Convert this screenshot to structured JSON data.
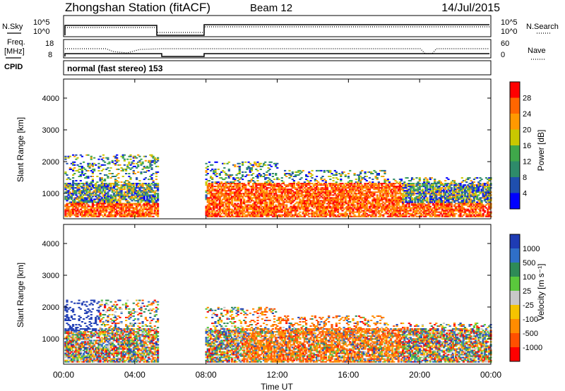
{
  "header": {
    "title": "Zhongshan Station (fitACF)",
    "beam": "Beam 12",
    "date": "14/Jul/2015"
  },
  "top_panel": {
    "left_label": "N.Sky",
    "right_label": "N.Search",
    "left_ticks": [
      "10^5",
      "10^0"
    ],
    "right_ticks": [
      "10^5",
      "10^0"
    ]
  },
  "freq_panel": {
    "left_label_1": "Freq.",
    "left_label_2": "[MHz]",
    "right_label": "Nave",
    "left_ticks": [
      "18",
      "8"
    ],
    "right_ticks": [
      "60",
      "0"
    ]
  },
  "cpid": {
    "label": "CPID",
    "value": "normal (fast stereo) 153"
  },
  "chart_data": [
    {
      "type": "heatmap",
      "name": "Power",
      "ylabel": "Slant Range [km]",
      "xlabel": "Time UT",
      "y_ticks": [
        1000,
        2000,
        3000,
        4000
      ],
      "ylim": [
        200,
        4600
      ],
      "x_ticks": [
        "00:00",
        "04:00",
        "08:00",
        "12:00",
        "16:00",
        "20:00",
        "00:00"
      ],
      "xlim_hours": [
        0,
        24
      ],
      "colorbar": {
        "label": "Power [dB]",
        "ticks": [
          "4",
          "8",
          "12",
          "16",
          "20",
          "24",
          "28"
        ],
        "colors": [
          "#0000ff",
          "#1f4fae",
          "#2e8b6a",
          "#3fa84a",
          "#c8c800",
          "#ff9900",
          "#ff6600",
          "#ff0000"
        ]
      },
      "data_gap_hours": [
        5.3,
        7.9
      ]
    },
    {
      "type": "heatmap",
      "name": "Velocity",
      "ylabel": "Slant Range [km]",
      "xlabel": "Time UT",
      "y_ticks": [
        1000,
        2000,
        3000,
        4000
      ],
      "ylim": [
        200,
        4600
      ],
      "x_ticks": [
        "00:00",
        "04:00",
        "08:00",
        "12:00",
        "16:00",
        "20:00",
        "00:00"
      ],
      "xlim_hours": [
        0,
        24
      ],
      "colorbar": {
        "label": "Velocity [m s⁻¹]",
        "ticks": [
          "1000",
          "500",
          "100",
          "25",
          "-25",
          "-100",
          "-500",
          "-1000"
        ],
        "colors": [
          "#1e3cb4",
          "#2f6fc8",
          "#2e8b57",
          "#5ac83c",
          "#c8c8c8",
          "#f5c400",
          "#ff8c00",
          "#ff5000",
          "#ff0000"
        ]
      },
      "data_gap_hours": [
        5.3,
        7.9
      ]
    }
  ],
  "footer": {
    "xlabel": "Time UT"
  }
}
